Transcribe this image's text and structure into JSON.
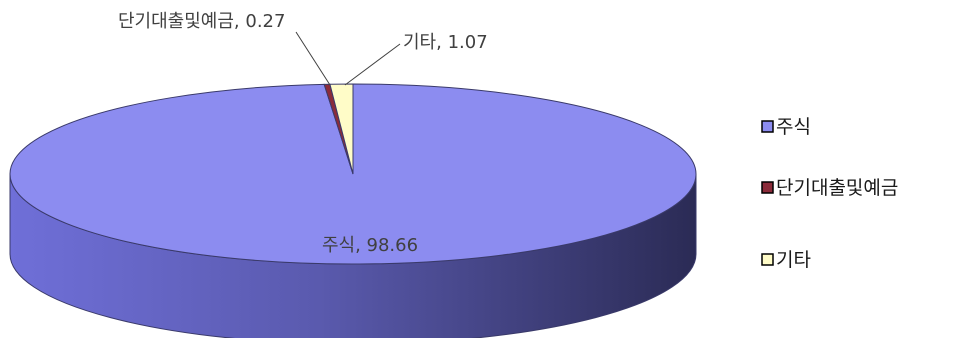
{
  "chart_data": {
    "type": "pie",
    "style": "3d",
    "categories": [
      "주식",
      "단기대출및예금",
      "기타"
    ],
    "values": [
      98.66,
      0.27,
      1.07
    ],
    "colors": [
      "#8c8cf0",
      "#8b2b3a",
      "#fffcc8"
    ],
    "data_labels": [
      "주식, 98.66",
      "단기대출및예금, 0.27",
      "기타, 1.07"
    ],
    "legend_position": "right"
  }
}
